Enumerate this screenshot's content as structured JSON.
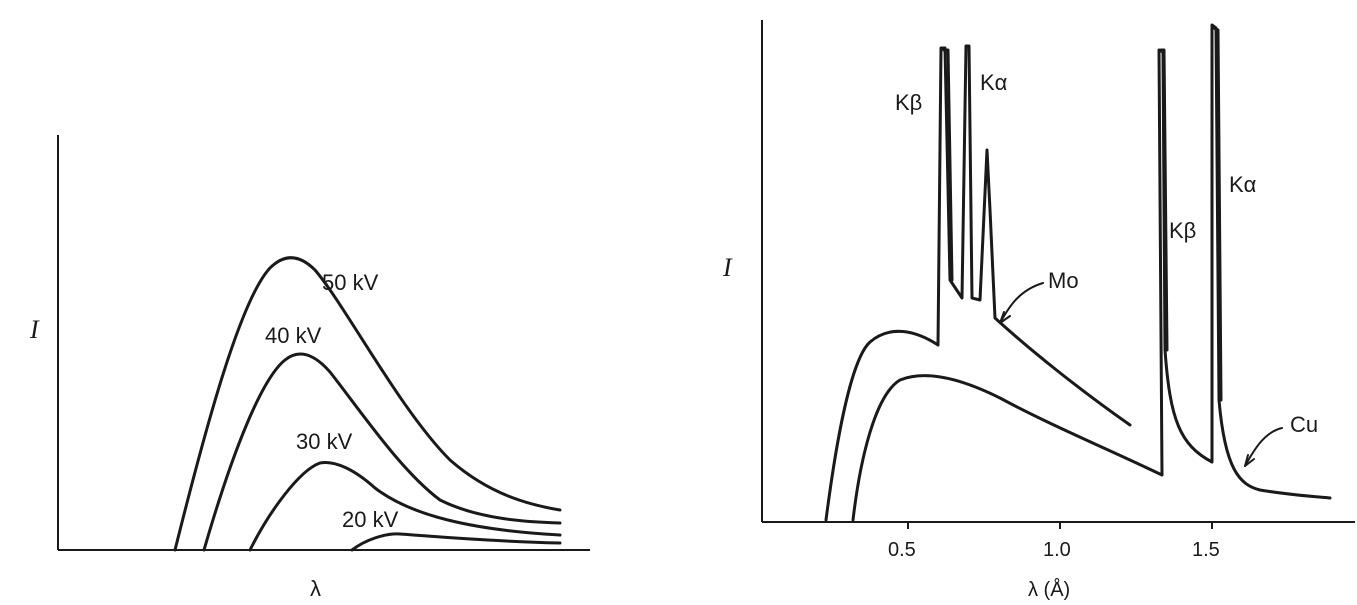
{
  "chart_data": [
    {
      "type": "line",
      "title": "",
      "ylabel": "I",
      "xlabel": "λ",
      "series": [
        {
          "name": "50 kV",
          "label": "50 kV"
        },
        {
          "name": "40 kV",
          "label": "40 kV"
        },
        {
          "name": "30 kV",
          "label": "30 kV"
        },
        {
          "name": "20 kV",
          "label": "20 kV"
        }
      ],
      "grid": false
    },
    {
      "type": "line",
      "title": "",
      "ylabel": "I",
      "xlabel": "λ (Å)",
      "x_ticks": [
        "0.5",
        "1.0",
        "1.5"
      ],
      "x_tick_values": [
        0.5,
        1.0,
        1.5
      ],
      "xlim": [
        0,
        1.95
      ],
      "series": [
        {
          "name": "Mo",
          "short_wavelength_limit": 0.25,
          "peaks": [
            {
              "label": "Kβ",
              "lambda": 0.63
            },
            {
              "label": "Kα",
              "lambda": 0.71
            }
          ]
        },
        {
          "name": "Cu",
          "short_wavelength_limit": 0.31,
          "peaks": [
            {
              "label": "Kβ",
              "lambda": 1.39
            },
            {
              "label": "Kα",
              "lambda": 1.54
            }
          ]
        }
      ],
      "annotations": {
        "mo_kb": "Kβ",
        "mo_ka": "Kα",
        "cu_kb": "Kβ",
        "cu_ka": "Kα",
        "mo": "Mo",
        "cu": "Cu"
      },
      "grid": false
    }
  ]
}
